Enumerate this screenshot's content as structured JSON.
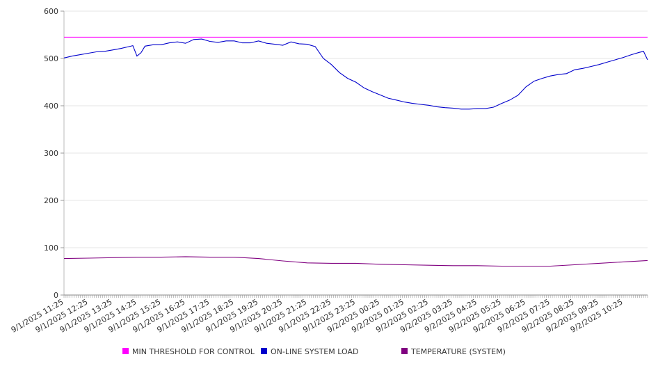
{
  "chart_data": {
    "type": "line",
    "title": "",
    "xlabel": "",
    "ylabel": "",
    "ylim": [
      0,
      600
    ],
    "yticks": [
      0,
      100,
      200,
      300,
      400,
      500,
      600
    ],
    "grid": "horizontal",
    "legend_position": "bottom",
    "x": [
      "9/1/2025 11:25",
      "9/1/2025 12:25",
      "9/1/2025 13:25",
      "9/1/2025 14:25",
      "9/1/2025 15:25",
      "9/1/2025 16:25",
      "9/1/2025 17:25",
      "9/1/2025 18:25",
      "9/1/2025 19:25",
      "9/1/2025 20:25",
      "9/1/2025 21:25",
      "9/1/2025 22:25",
      "9/1/2025 23:25",
      "9/2/2025 00:25",
      "9/2/2025 01:25",
      "9/2/2025 02:25",
      "9/2/2025 03:25",
      "9/2/2025 04:25",
      "9/2/2025 05:25",
      "9/2/2025 06:25",
      "9/2/2025 07:25",
      "9/2/2025 08:25",
      "9/2/2025 09:25",
      "9/2/2025 10:25"
    ],
    "series": [
      {
        "name": "MIN THRESHOLD FOR CONTROL",
        "color": "#ff00ff",
        "x": [
          "9/1/2025 11:25",
          "9/2/2025 11:25"
        ],
        "values": [
          545,
          545
        ]
      },
      {
        "name": "ON-LINE SYSTEM LOAD",
        "color": "#0000cc",
        "x": [
          "9/1/2025 11:25",
          "9/1/2025 11:45",
          "9/1/2025 12:05",
          "9/1/2025 12:25",
          "9/1/2025 12:45",
          "9/1/2025 13:05",
          "9/1/2025 13:25",
          "9/1/2025 13:45",
          "9/1/2025 14:05",
          "9/1/2025 14:15",
          "9/1/2025 14:25",
          "9/1/2025 14:35",
          "9/1/2025 14:45",
          "9/1/2025 15:05",
          "9/1/2025 15:25",
          "9/1/2025 15:45",
          "9/1/2025 16:05",
          "9/1/2025 16:25",
          "9/1/2025 16:45",
          "9/1/2025 17:05",
          "9/1/2025 17:25",
          "9/1/2025 17:45",
          "9/1/2025 18:05",
          "9/1/2025 18:25",
          "9/1/2025 18:45",
          "9/1/2025 19:05",
          "9/1/2025 19:25",
          "9/1/2025 19:45",
          "9/1/2025 20:05",
          "9/1/2025 20:25",
          "9/1/2025 20:45",
          "9/1/2025 21:05",
          "9/1/2025 21:25",
          "9/1/2025 21:45",
          "9/1/2025 22:05",
          "9/1/2025 22:25",
          "9/1/2025 22:45",
          "9/1/2025 23:05",
          "9/1/2025 23:25",
          "9/1/2025 23:45",
          "9/2/2025 00:05",
          "9/2/2025 00:25",
          "9/2/2025 00:45",
          "9/2/2025 01:05",
          "9/2/2025 01:25",
          "9/2/2025 01:45",
          "9/2/2025 02:05",
          "9/2/2025 02:25",
          "9/2/2025 02:45",
          "9/2/2025 03:05",
          "9/2/2025 03:25",
          "9/2/2025 03:45",
          "9/2/2025 04:05",
          "9/2/2025 04:25",
          "9/2/2025 04:45",
          "9/2/2025 05:05",
          "9/2/2025 05:25",
          "9/2/2025 05:45",
          "9/2/2025 06:05",
          "9/2/2025 06:25",
          "9/2/2025 06:45",
          "9/2/2025 07:05",
          "9/2/2025 07:25",
          "9/2/2025 07:45",
          "9/2/2025 08:05",
          "9/2/2025 08:25",
          "9/2/2025 08:45",
          "9/2/2025 09:05",
          "9/2/2025 09:25",
          "9/2/2025 09:45",
          "9/2/2025 10:05",
          "9/2/2025 10:25",
          "9/2/2025 10:45",
          "9/2/2025 11:05",
          "9/2/2025 11:15",
          "9/2/2025 11:25"
        ],
        "values": [
          501,
          505,
          508,
          511,
          514,
          515,
          518,
          521,
          525,
          527,
          505,
          512,
          526,
          529,
          529,
          533,
          535,
          532,
          540,
          541,
          536,
          534,
          537,
          537,
          533,
          533,
          537,
          532,
          530,
          528,
          535,
          531,
          530,
          525,
          500,
          487,
          470,
          458,
          450,
          438,
          430,
          423,
          416,
          412,
          408,
          405,
          403,
          401,
          398,
          396,
          395,
          393,
          393,
          394,
          394,
          397,
          405,
          412,
          422,
          440,
          452,
          458,
          463,
          466,
          468,
          476,
          479,
          483,
          487,
          492,
          497,
          502,
          508,
          513,
          515,
          497
        ]
      },
      {
        "name": "TEMPERATURE (SYSTEM)",
        "color": "#800080",
        "x": [
          "9/1/2025 11:25",
          "9/1/2025 12:25",
          "9/1/2025 13:25",
          "9/1/2025 14:25",
          "9/1/2025 15:25",
          "9/1/2025 16:25",
          "9/1/2025 17:25",
          "9/1/2025 18:25",
          "9/1/2025 19:25",
          "9/1/2025 20:25",
          "9/1/2025 21:25",
          "9/1/2025 22:25",
          "9/1/2025 23:25",
          "9/2/2025 00:25",
          "9/2/2025 01:25",
          "9/2/2025 02:25",
          "9/2/2025 03:25",
          "9/2/2025 04:25",
          "9/2/2025 05:25",
          "9/2/2025 06:25",
          "9/2/2025 07:25",
          "9/2/2025 08:25",
          "9/2/2025 09:25",
          "9/2/2025 10:25",
          "9/2/2025 11:25"
        ],
        "values": [
          77,
          78,
          79,
          80,
          80,
          81,
          80,
          80,
          77,
          72,
          68,
          67,
          67,
          65,
          64,
          63,
          62,
          62,
          61,
          61,
          61,
          64,
          67,
          70,
          73
        ]
      }
    ]
  }
}
